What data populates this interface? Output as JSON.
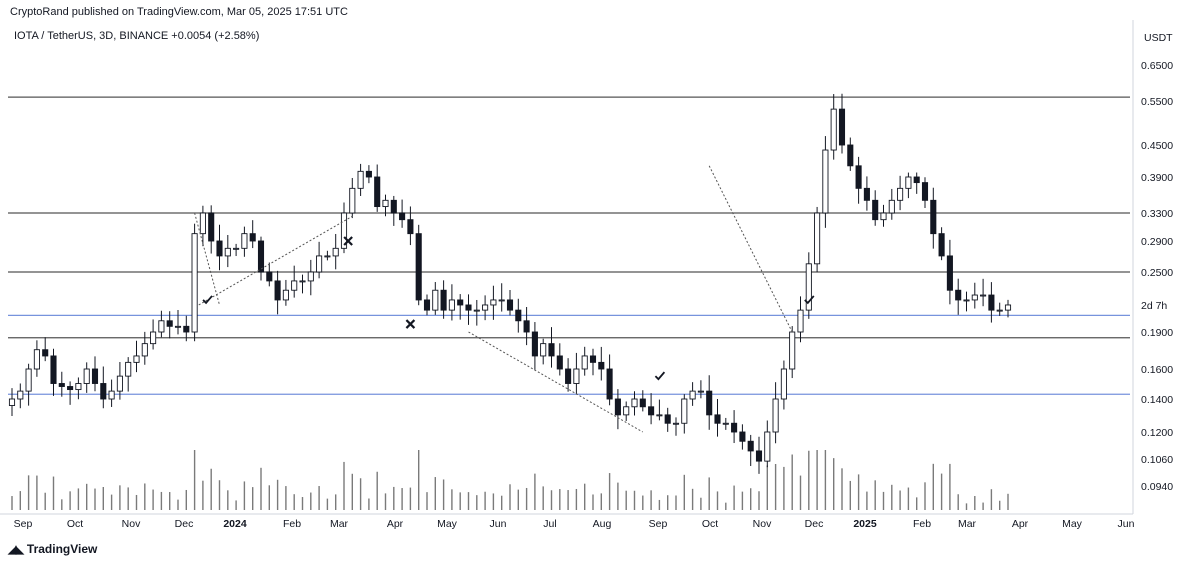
{
  "header": {
    "publisher": "CryptoRand published on TradingView.com, Mar 05, 2025 17:51 UTC",
    "symbol_line": "IOTA / TetherUS, 3D, BINANCE  +0.0054 (+2.58%)"
  },
  "brand": {
    "name": "TradingView",
    "icon": "tradingview-logo-icon"
  },
  "colors": {
    "up": "#131722",
    "down": "#131722",
    "hline": "#555555",
    "blue_line": "#4a6fd1",
    "trend": "#555555"
  },
  "chart_data": {
    "type": "candlestick",
    "yaxis_unit": "USDT",
    "y_ticks": [
      "0.6500",
      "0.5500",
      "0.4500",
      "0.3900",
      "0.3300",
      "0.2900",
      "0.2500",
      "0.1900",
      "0.1600",
      "0.1400",
      "0.1200",
      "0.1060",
      "0.0940"
    ],
    "x_ticks": [
      {
        "label": "Sep",
        "bold": false
      },
      {
        "label": "Oct",
        "bold": false
      },
      {
        "label": "Nov",
        "bold": false
      },
      {
        "label": "Dec",
        "bold": false
      },
      {
        "label": "2024",
        "bold": true
      },
      {
        "label": "Feb",
        "bold": false
      },
      {
        "label": "Mar",
        "bold": false
      },
      {
        "label": "Apr",
        "bold": false
      },
      {
        "label": "May",
        "bold": false
      },
      {
        "label": "Jun",
        "bold": false
      },
      {
        "label": "Jul",
        "bold": false
      },
      {
        "label": "Aug",
        "bold": false
      },
      {
        "label": "Sep",
        "bold": false
      },
      {
        "label": "Oct",
        "bold": false
      },
      {
        "label": "Nov",
        "bold": false
      },
      {
        "label": "Dec",
        "bold": false
      },
      {
        "label": "2025",
        "bold": true
      },
      {
        "label": "Feb",
        "bold": false
      },
      {
        "label": "Mar",
        "bold": false
      },
      {
        "label": "Apr",
        "bold": false
      },
      {
        "label": "May",
        "bold": false
      },
      {
        "label": "Jun",
        "bold": false
      }
    ],
    "countdown_label": "2d 7h",
    "horizontal_levels": [
      0.56,
      0.33,
      0.25,
      0.185
    ],
    "blue_levels": [
      0.205,
      0.143
    ],
    "close_path": [
      0.14,
      0.145,
      0.16,
      0.175,
      0.17,
      0.15,
      0.148,
      0.146,
      0.15,
      0.16,
      0.15,
      0.14,
      0.145,
      0.155,
      0.165,
      0.17,
      0.18,
      0.19,
      0.2,
      0.195,
      0.195,
      0.19,
      0.3,
      0.33,
      0.29,
      0.27,
      0.28,
      0.28,
      0.3,
      0.29,
      0.25,
      0.24,
      0.22,
      0.23,
      0.24,
      0.24,
      0.25,
      0.27,
      0.27,
      0.28,
      0.33,
      0.37,
      0.4,
      0.39,
      0.34,
      0.35,
      0.33,
      0.32,
      0.3,
      0.22,
      0.21,
      0.23,
      0.21,
      0.22,
      0.215,
      0.21,
      0.21,
      0.215,
      0.22,
      0.22,
      0.21,
      0.2,
      0.19,
      0.17,
      0.18,
      0.17,
      0.16,
      0.15,
      0.16,
      0.17,
      0.165,
      0.16,
      0.14,
      0.13,
      0.135,
      0.14,
      0.135,
      0.13,
      0.13,
      0.125,
      0.125,
      0.14,
      0.145,
      0.145,
      0.13,
      0.125,
      0.125,
      0.12,
      0.115,
      0.11,
      0.105,
      0.12,
      0.14,
      0.16,
      0.19,
      0.21,
      0.26,
      0.33,
      0.44,
      0.53,
      0.45,
      0.41,
      0.37,
      0.35,
      0.32,
      0.33,
      0.35,
      0.37,
      0.39,
      0.38,
      0.35,
      0.3,
      0.27,
      0.23,
      0.22,
      0.22,
      0.225,
      0.225,
      0.21,
      0.21,
      0.215
    ],
    "events": [
      {
        "kind": "check",
        "date_index": 23.5,
        "price": 0.22
      },
      {
        "kind": "cross",
        "date_index": 40.5,
        "price": 0.29
      },
      {
        "kind": "cross",
        "date_index": 48,
        "price": 0.197
      },
      {
        "kind": "check",
        "date_index": 78,
        "price": 0.155
      },
      {
        "kind": "check",
        "date_index": 96,
        "price": 0.22
      }
    ],
    "trendlines": [
      {
        "from": [
          22.5,
          0.215
        ],
        "to": [
          41,
          0.325
        ]
      },
      {
        "from": [
          22,
          0.33
        ],
        "to": [
          25,
          0.215
        ]
      },
      {
        "from": [
          55,
          0.19
        ],
        "to": [
          76,
          0.12
        ]
      },
      {
        "from": [
          84,
          0.41
        ],
        "to": [
          94,
          0.19
        ]
      }
    ]
  }
}
